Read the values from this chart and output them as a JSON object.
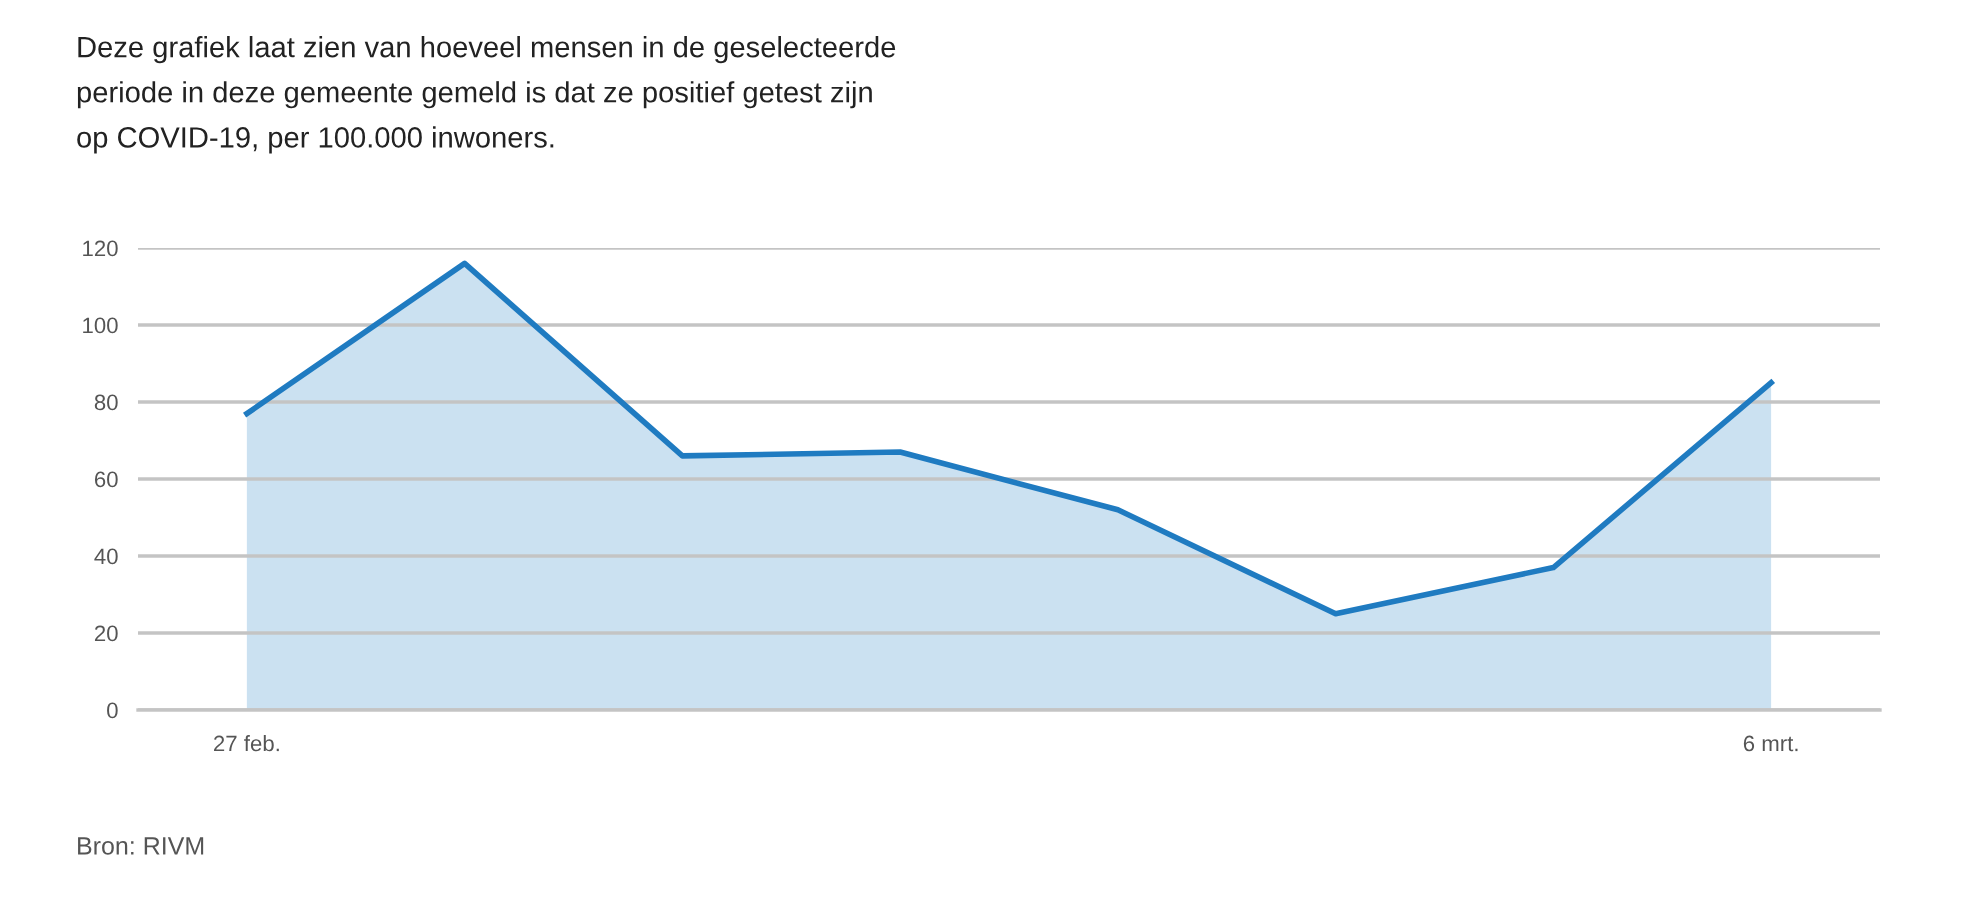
{
  "chart_data": {
    "type": "area",
    "title": "Deze grafiek laat zien van hoeveel mensen in de geselecteerde\nperiode in deze gemeente gemeld is dat ze positief getest zijn\nop COVID-19, per 100.000 inwoners.",
    "categories": [
      "27 feb.",
      null,
      null,
      null,
      null,
      null,
      null,
      "6 mrt."
    ],
    "series": [
      {
        "color": "#1f7bc1",
        "values": [
          77,
          116,
          66,
          67,
          52,
          25,
          37,
          85
        ]
      }
    ],
    "ylim": [
      0,
      120
    ],
    "yticks": [
      0,
      20,
      40,
      60,
      80,
      100,
      120
    ],
    "grid": "y",
    "annotations": [
      "Bron: RIVM"
    ]
  }
}
